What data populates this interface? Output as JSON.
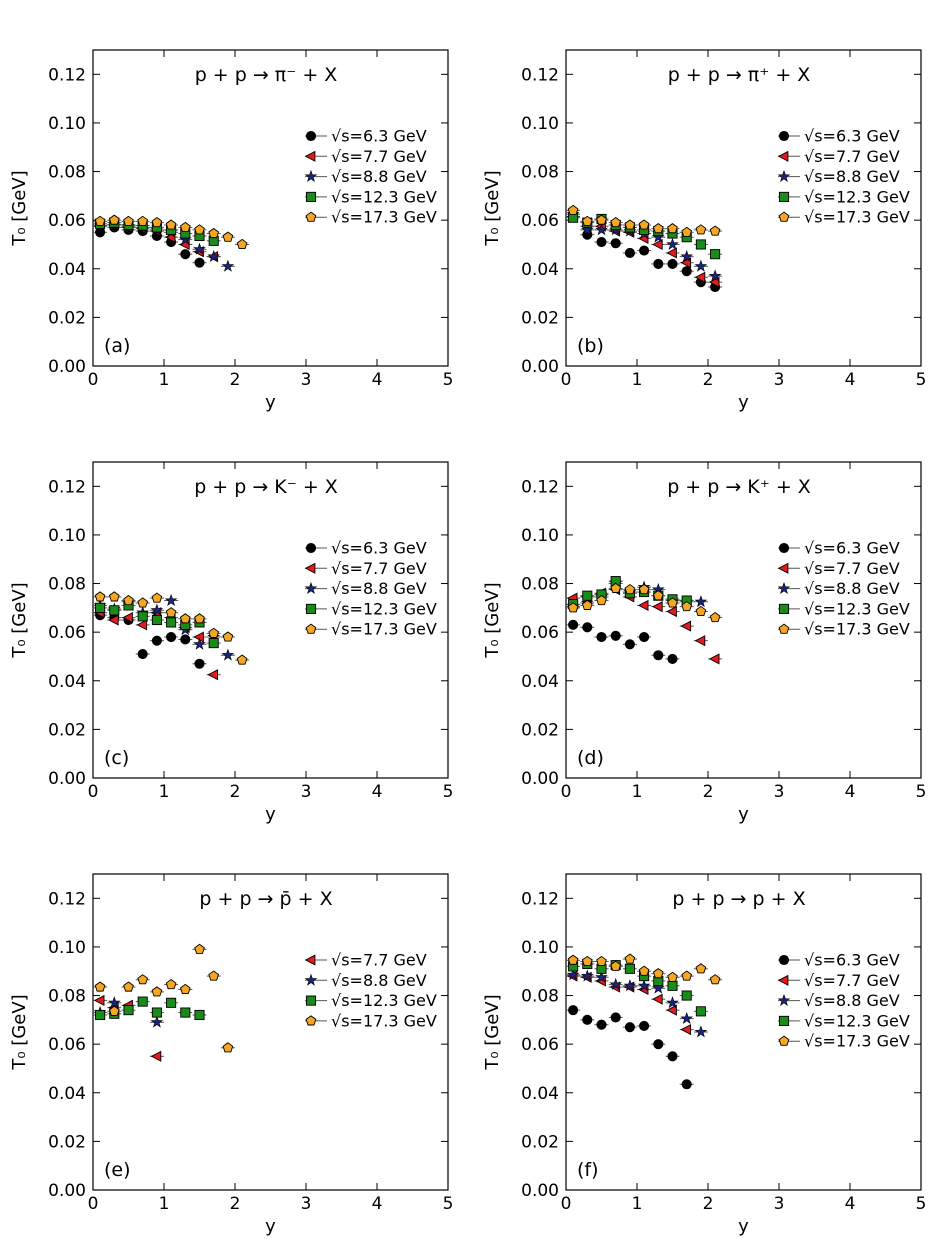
{
  "chart_data": [
    {
      "type": "scatter",
      "panel": "(a)",
      "title": "p + p → π⁻ + X",
      "xlabel": "y",
      "ylabel": "T₀ [GeV]",
      "xlim": [
        0,
        5
      ],
      "ylim": [
        0,
        0.13
      ],
      "xticks": [
        "0",
        "1",
        "2",
        "3",
        "4",
        "5"
      ],
      "yticks": [
        "0.00",
        "0.02",
        "0.04",
        "0.06",
        "0.08",
        "0.10",
        "0.12"
      ],
      "legend_position": "right",
      "series": [
        {
          "name": "√s=6.3 GeV",
          "marker": "circle",
          "color": "#000000",
          "x": [
            0.1,
            0.3,
            0.5,
            0.7,
            0.9,
            1.1,
            1.3,
            1.5
          ],
          "y": [
            0.055,
            0.057,
            0.056,
            0.0555,
            0.0535,
            0.051,
            0.046,
            0.0425
          ]
        },
        {
          "name": "√s=7.7 GeV",
          "marker": "triangle-left",
          "color": "#e41a1c",
          "x": [
            0.1,
            0.3,
            0.5,
            0.7,
            0.9,
            1.1,
            1.3,
            1.5,
            1.7
          ],
          "y": [
            0.0575,
            0.058,
            0.057,
            0.0565,
            0.0555,
            0.053,
            0.05,
            0.047,
            0.045
          ]
        },
        {
          "name": "√s=8.8 GeV",
          "marker": "star",
          "color": "#1a237e",
          "x": [
            0.1,
            0.3,
            0.5,
            0.7,
            0.9,
            1.1,
            1.3,
            1.5,
            1.7,
            1.9
          ],
          "y": [
            0.0578,
            0.0582,
            0.0575,
            0.057,
            0.056,
            0.055,
            0.052,
            0.048,
            0.045,
            0.041
          ]
        },
        {
          "name": "√s=12.3 GeV",
          "marker": "square",
          "color": "#1a8a1a",
          "x": [
            0.1,
            0.3,
            0.5,
            0.7,
            0.9,
            1.1,
            1.3,
            1.5,
            1.7
          ],
          "y": [
            0.0585,
            0.059,
            0.058,
            0.0578,
            0.057,
            0.056,
            0.0545,
            0.0535,
            0.0515
          ]
        },
        {
          "name": "√s=17.3 GeV",
          "marker": "pentagon",
          "color": "#f5a623",
          "x": [
            0.1,
            0.3,
            0.5,
            0.7,
            0.9,
            1.1,
            1.3,
            1.5,
            1.7,
            1.9,
            2.1
          ],
          "y": [
            0.0595,
            0.06,
            0.0595,
            0.0595,
            0.059,
            0.058,
            0.057,
            0.056,
            0.0545,
            0.053,
            0.05
          ]
        }
      ]
    },
    {
      "type": "scatter",
      "panel": "(b)",
      "title": "p + p → π⁺ + X",
      "xlabel": "y",
      "ylabel": "T₀ [GeV]",
      "xlim": [
        0,
        5
      ],
      "ylim": [
        0,
        0.13
      ],
      "xticks": [
        "0",
        "1",
        "2",
        "3",
        "4",
        "5"
      ],
      "yticks": [
        "0.00",
        "0.02",
        "0.04",
        "0.06",
        "0.08",
        "0.10",
        "0.12"
      ],
      "legend_position": "right",
      "series": [
        {
          "name": "√s=6.3 GeV",
          "marker": "circle",
          "color": "#000000",
          "x": [
            0.3,
            0.5,
            0.7,
            0.9,
            1.1,
            1.3,
            1.5,
            1.7,
            1.9,
            2.1
          ],
          "y": [
            0.054,
            0.051,
            0.0505,
            0.0465,
            0.0475,
            0.042,
            0.042,
            0.039,
            0.0345,
            0.0325
          ]
        },
        {
          "name": "√s=7.7 GeV",
          "marker": "triangle-left",
          "color": "#e41a1c",
          "x": [
            0.1,
            0.3,
            0.5,
            0.7,
            0.9,
            1.1,
            1.3,
            1.5,
            1.7,
            1.9,
            2.1
          ],
          "y": [
            0.0615,
            0.0575,
            0.0575,
            0.0555,
            0.055,
            0.0525,
            0.05,
            0.0465,
            0.0425,
            0.0365,
            0.0345
          ]
        },
        {
          "name": "√s=8.8 GeV",
          "marker": "star",
          "color": "#1a237e",
          "x": [
            0.1,
            0.3,
            0.5,
            0.7,
            0.9,
            1.1,
            1.3,
            1.5,
            1.7,
            1.9,
            2.1
          ],
          "y": [
            0.0625,
            0.056,
            0.056,
            0.056,
            0.0555,
            0.0545,
            0.053,
            0.05,
            0.045,
            0.041,
            0.037
          ]
        },
        {
          "name": "√s=12.3 GeV",
          "marker": "square",
          "color": "#1a8a1a",
          "x": [
            0.1,
            0.3,
            0.5,
            0.7,
            0.9,
            1.1,
            1.3,
            1.5,
            1.7,
            1.9,
            2.1
          ],
          "y": [
            0.061,
            0.059,
            0.0605,
            0.058,
            0.057,
            0.056,
            0.0555,
            0.0545,
            0.053,
            0.05,
            0.046
          ]
        },
        {
          "name": "√s=17.3 GeV",
          "marker": "pentagon",
          "color": "#f5a623",
          "x": [
            0.1,
            0.3,
            0.5,
            0.7,
            0.9,
            1.1,
            1.3,
            1.5,
            1.7,
            1.9,
            2.1
          ],
          "y": [
            0.064,
            0.0595,
            0.06,
            0.059,
            0.058,
            0.058,
            0.0565,
            0.0565,
            0.055,
            0.056,
            0.0555
          ]
        }
      ]
    },
    {
      "type": "scatter",
      "panel": "(c)",
      "title": "p + p → K⁻ + X",
      "xlabel": "y",
      "ylabel": "T₀ [GeV]",
      "xlim": [
        0,
        5
      ],
      "ylim": [
        0,
        0.13
      ],
      "xticks": [
        "0",
        "1",
        "2",
        "3",
        "4",
        "5"
      ],
      "yticks": [
        "0.00",
        "0.02",
        "0.04",
        "0.06",
        "0.08",
        "0.10",
        "0.12"
      ],
      "legend_position": "right",
      "series": [
        {
          "name": "√s=6.3 GeV",
          "marker": "circle",
          "color": "#000000",
          "x": [
            0.1,
            0.3,
            0.5,
            0.7,
            0.9,
            1.1,
            1.3,
            1.5
          ],
          "y": [
            0.067,
            0.066,
            0.065,
            0.051,
            0.0565,
            0.058,
            0.057,
            0.047
          ]
        },
        {
          "name": "√s=7.7 GeV",
          "marker": "triangle-left",
          "color": "#e41a1c",
          "x": [
            0.1,
            0.3,
            0.5,
            0.7,
            0.9,
            1.1,
            1.3,
            1.5,
            1.7
          ],
          "y": [
            0.068,
            0.065,
            0.066,
            0.063,
            0.068,
            0.066,
            0.062,
            0.058,
            0.0425
          ]
        },
        {
          "name": "√s=8.8 GeV",
          "marker": "star",
          "color": "#1a237e",
          "x": [
            0.1,
            0.3,
            0.5,
            0.7,
            0.9,
            1.1,
            1.3,
            1.5,
            1.7,
            1.9
          ],
          "y": [
            0.071,
            0.0695,
            0.0725,
            0.068,
            0.069,
            0.073,
            0.061,
            0.055,
            0.058,
            0.0505
          ]
        },
        {
          "name": "√s=12.3 GeV",
          "marker": "square",
          "color": "#1a8a1a",
          "x": [
            0.1,
            0.3,
            0.5,
            0.7,
            0.9,
            1.1,
            1.3,
            1.5,
            1.7
          ],
          "y": [
            0.07,
            0.069,
            0.071,
            0.0665,
            0.065,
            0.064,
            0.063,
            0.064,
            0.0555
          ]
        },
        {
          "name": "√s=17.3 GeV",
          "marker": "pentagon",
          "color": "#f5a623",
          "x": [
            0.1,
            0.3,
            0.5,
            0.7,
            0.9,
            1.1,
            1.3,
            1.5,
            1.7,
            1.9,
            2.1
          ],
          "y": [
            0.0745,
            0.0745,
            0.073,
            0.072,
            0.074,
            0.068,
            0.0655,
            0.0655,
            0.0595,
            0.058,
            0.0485
          ]
        }
      ]
    },
    {
      "type": "scatter",
      "panel": "(d)",
      "title": "p + p → K⁺ + X",
      "xlabel": "y",
      "ylabel": "T₀ [GeV]",
      "xlim": [
        0,
        5
      ],
      "ylim": [
        0,
        0.13
      ],
      "xticks": [
        "0",
        "1",
        "2",
        "3",
        "4",
        "5"
      ],
      "yticks": [
        "0.00",
        "0.02",
        "0.04",
        "0.06",
        "0.08",
        "0.10",
        "0.12"
      ],
      "legend_position": "right",
      "series": [
        {
          "name": "√s=6.3 GeV",
          "marker": "circle",
          "color": "#000000",
          "x": [
            0.1,
            0.3,
            0.5,
            0.7,
            0.9,
            1.1,
            1.3,
            1.5
          ],
          "y": [
            0.063,
            0.062,
            0.058,
            0.0585,
            0.055,
            0.058,
            0.0505,
            0.049
          ]
        },
        {
          "name": "√s=7.7 GeV",
          "marker": "triangle-left",
          "color": "#e41a1c",
          "x": [
            0.1,
            0.3,
            0.5,
            0.7,
            0.9,
            1.1,
            1.3,
            1.5,
            1.7,
            1.9,
            2.1
          ],
          "y": [
            0.074,
            0.0745,
            0.076,
            0.0775,
            0.0745,
            0.071,
            0.0705,
            0.0685,
            0.0625,
            0.0565,
            0.049
          ]
        },
        {
          "name": "√s=8.8 GeV",
          "marker": "star",
          "color": "#1a237e",
          "x": [
            0.1,
            0.3,
            0.5,
            0.7,
            0.9,
            1.1,
            1.3,
            1.5,
            1.7,
            1.9
          ],
          "y": [
            0.0705,
            0.072,
            0.0745,
            0.08,
            0.0765,
            0.0785,
            0.0775,
            0.073,
            0.0725,
            0.0725
          ]
        },
        {
          "name": "√s=12.3 GeV",
          "marker": "square",
          "color": "#1a8a1a",
          "x": [
            0.1,
            0.3,
            0.5,
            0.7,
            0.9,
            1.1,
            1.3,
            1.5,
            1.7
          ],
          "y": [
            0.0715,
            0.075,
            0.0755,
            0.081,
            0.076,
            0.0765,
            0.075,
            0.0735,
            0.073
          ]
        },
        {
          "name": "√s=17.3 GeV",
          "marker": "pentagon",
          "color": "#f5a623",
          "x": [
            0.1,
            0.3,
            0.5,
            0.7,
            0.9,
            1.1,
            1.3,
            1.5,
            1.7,
            1.9,
            2.1
          ],
          "y": [
            0.07,
            0.071,
            0.073,
            0.078,
            0.0775,
            0.0775,
            0.075,
            0.072,
            0.0705,
            0.0685,
            0.066
          ]
        }
      ]
    },
    {
      "type": "scatter",
      "panel": "(e)",
      "title": "p + p → p̄ + X",
      "xlabel": "y",
      "ylabel": "T₀ [GeV]",
      "xlim": [
        0,
        5
      ],
      "ylim": [
        0,
        0.13
      ],
      "xticks": [
        "0",
        "1",
        "2",
        "3",
        "4",
        "5"
      ],
      "yticks": [
        "0.00",
        "0.02",
        "0.04",
        "0.06",
        "0.08",
        "0.10",
        "0.12"
      ],
      "legend_position": "right",
      "series": [
        {
          "name": "√s=7.7 GeV",
          "marker": "triangle-left",
          "color": "#e41a1c",
          "x": [
            0.1,
            0.3,
            0.5,
            0.9
          ],
          "y": [
            0.078,
            0.075,
            0.076,
            0.055
          ]
        },
        {
          "name": "√s=8.8 GeV",
          "marker": "star",
          "color": "#1a237e",
          "x": [
            0.1,
            0.3,
            0.9
          ],
          "y": [
            0.073,
            0.077,
            0.069
          ]
        },
        {
          "name": "√s=12.3 GeV",
          "marker": "square",
          "color": "#1a8a1a",
          "x": [
            0.1,
            0.3,
            0.5,
            0.7,
            0.9,
            1.1,
            1.3,
            1.5
          ],
          "y": [
            0.072,
            0.0725,
            0.074,
            0.0775,
            0.073,
            0.077,
            0.073,
            0.072
          ]
        },
        {
          "name": "√s=17.3 GeV",
          "marker": "pentagon",
          "color": "#f5a623",
          "x": [
            0.1,
            0.3,
            0.5,
            0.7,
            0.9,
            1.1,
            1.3,
            1.5,
            1.7,
            1.9
          ],
          "y": [
            0.0835,
            0.0735,
            0.0835,
            0.0865,
            0.0815,
            0.0845,
            0.0825,
            0.099,
            0.088,
            0.0585
          ]
        }
      ]
    },
    {
      "type": "scatter",
      "panel": "(f)",
      "title": "p + p → p + X",
      "xlabel": "y",
      "ylabel": "T₀ [GeV]",
      "xlim": [
        0,
        5
      ],
      "ylim": [
        0,
        0.13
      ],
      "xticks": [
        "0",
        "1",
        "2",
        "3",
        "4",
        "5"
      ],
      "yticks": [
        "0.00",
        "0.02",
        "0.04",
        "0.06",
        "0.08",
        "0.10",
        "0.12"
      ],
      "legend_position": "right",
      "series": [
        {
          "name": "√s=6.3 GeV",
          "marker": "circle",
          "color": "#000000",
          "x": [
            0.1,
            0.3,
            0.5,
            0.7,
            0.9,
            1.1,
            1.3,
            1.5,
            1.7
          ],
          "y": [
            0.074,
            0.07,
            0.068,
            0.071,
            0.067,
            0.0675,
            0.06,
            0.055,
            0.0435
          ]
        },
        {
          "name": "√s=7.7 GeV",
          "marker": "triangle-left",
          "color": "#e41a1c",
          "x": [
            0.1,
            0.3,
            0.5,
            0.7,
            0.9,
            1.1,
            1.3,
            1.5,
            1.7
          ],
          "y": [
            0.088,
            0.0875,
            0.086,
            0.0835,
            0.0835,
            0.0825,
            0.0785,
            0.074,
            0.066
          ]
        },
        {
          "name": "√s=8.8 GeV",
          "marker": "star",
          "color": "#1a237e",
          "x": [
            0.1,
            0.3,
            0.5,
            0.7,
            0.9,
            1.1,
            1.3,
            1.5,
            1.7,
            1.9
          ],
          "y": [
            0.0885,
            0.088,
            0.0875,
            0.0845,
            0.084,
            0.084,
            0.083,
            0.077,
            0.0705,
            0.065
          ]
        },
        {
          "name": "√s=12.3 GeV",
          "marker": "square",
          "color": "#1a8a1a",
          "x": [
            0.1,
            0.3,
            0.5,
            0.7,
            0.9,
            1.1,
            1.3,
            1.5,
            1.7,
            1.9
          ],
          "y": [
            0.092,
            0.093,
            0.091,
            0.0925,
            0.091,
            0.088,
            0.086,
            0.084,
            0.08,
            0.0735
          ]
        },
        {
          "name": "√s=17.3 GeV",
          "marker": "pentagon",
          "color": "#f5a623",
          "x": [
            0.1,
            0.3,
            0.5,
            0.7,
            0.9,
            1.1,
            1.3,
            1.5,
            1.7,
            1.9,
            2.1
          ],
          "y": [
            0.0945,
            0.094,
            0.094,
            0.092,
            0.095,
            0.09,
            0.089,
            0.0875,
            0.088,
            0.091,
            0.0865
          ]
        }
      ]
    }
  ]
}
